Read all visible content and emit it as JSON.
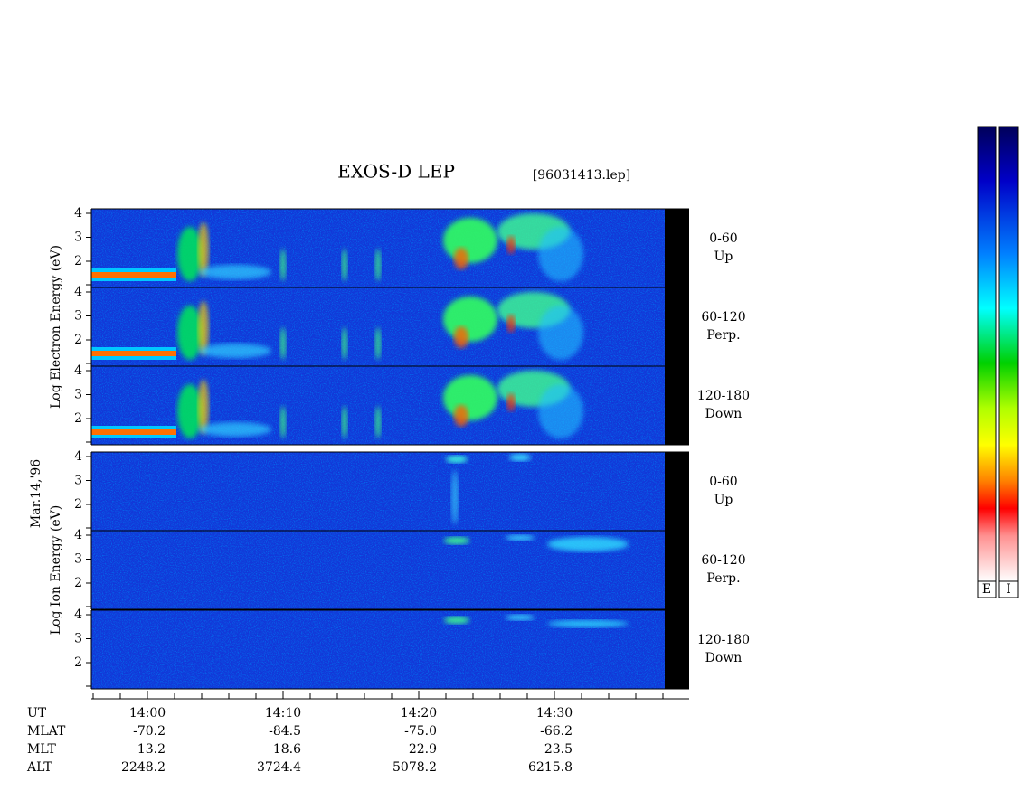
{
  "header": {
    "title": "EXOS-D LEP",
    "file": "[96031413.lep]"
  },
  "date": "Mar.14,'96",
  "energy_ticks": [
    "4",
    "3",
    "2"
  ],
  "electron": {
    "axis_label": "Log Electron Energy (eV)",
    "panels": [
      {
        "range": "0-60",
        "direction": "Up"
      },
      {
        "range": "60-120",
        "direction": "Perp."
      },
      {
        "range": "120-180",
        "direction": "Down"
      }
    ]
  },
  "ion": {
    "axis_label": "Log Ion Energy (eV)",
    "panels": [
      {
        "range": "0-60",
        "direction": "Up"
      },
      {
        "range": "60-120",
        "direction": "Perp."
      },
      {
        "range": "120-180",
        "direction": "Down"
      }
    ]
  },
  "time_axis": {
    "label": "UT",
    "ticks": [
      "14:00",
      "14:10",
      "14:20",
      "14:30"
    ]
  },
  "ephemeris": {
    "rows": [
      {
        "label": "MLAT",
        "values": [
          "-70.2",
          "-84.5",
          "-75.0",
          "-66.2"
        ]
      },
      {
        "label": "MLT",
        "values": [
          "13.2",
          "18.6",
          "22.9",
          "23.5"
        ]
      },
      {
        "label": "ALT",
        "values": [
          "2248.2",
          "3724.4",
          "5078.2",
          "6215.8"
        ]
      }
    ]
  },
  "colorbar": {
    "labels": [
      "E",
      "I"
    ]
  }
}
